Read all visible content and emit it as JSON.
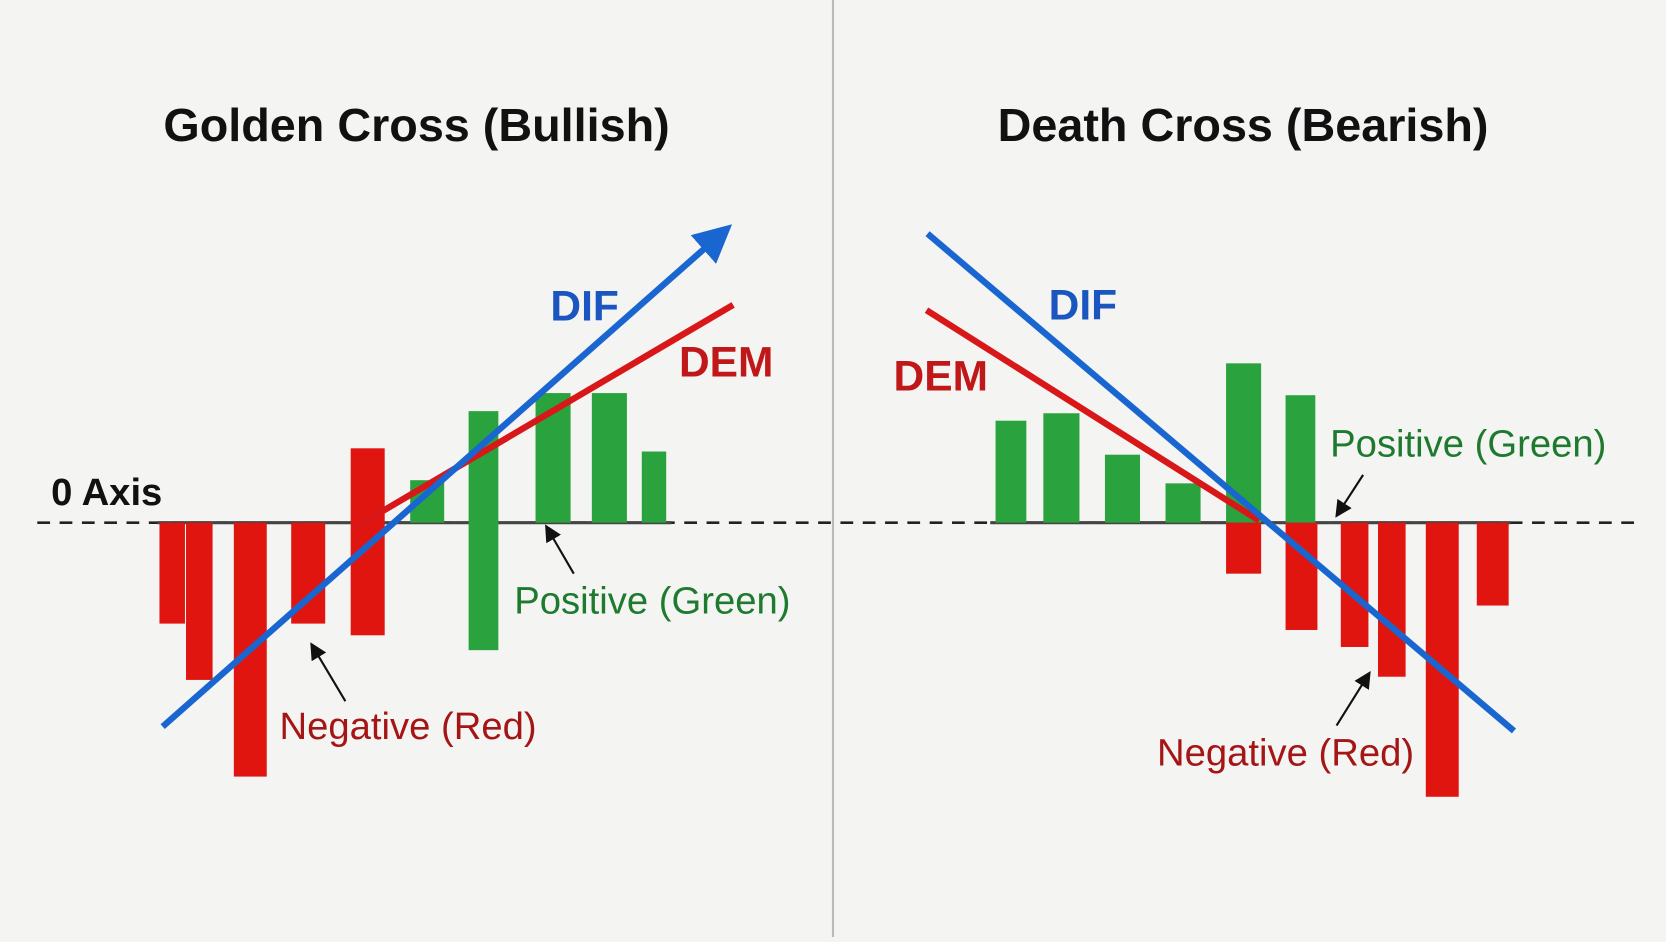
{
  "axis_label": "0 Axis",
  "panels": [
    {
      "title": "Golden Cross (Bullish)",
      "dif": "DIF",
      "dem": "DEM",
      "positive": "Positive (Green)",
      "negative": "Negative (Red)"
    },
    {
      "title": "Death Cross (Bearish)",
      "dif": "DIF",
      "dem": "DEM",
      "positive": "Positive (Green)",
      "negative": "Negative (Red)"
    }
  ]
}
